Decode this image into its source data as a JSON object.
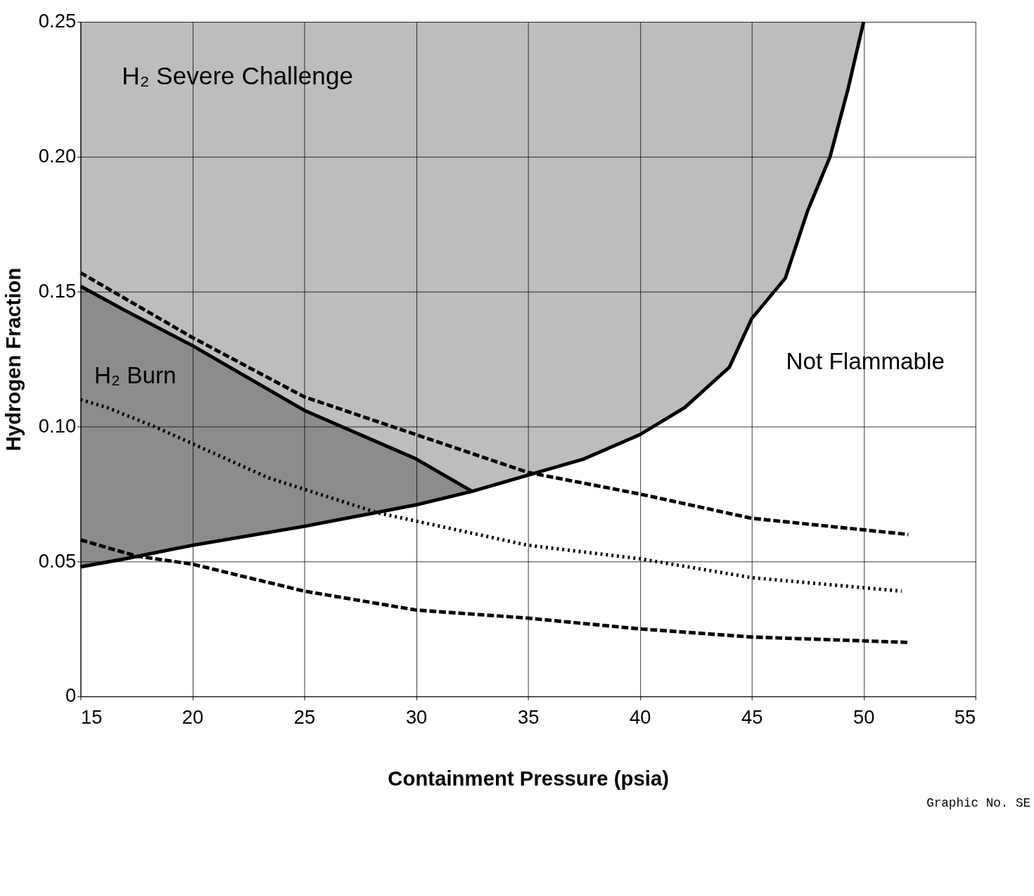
{
  "chart_data": {
    "type": "line",
    "xlabel": "Containment Pressure (psia)",
    "ylabel": "Hydrogen Fraction",
    "xlim": [
      15,
      55
    ],
    "ylim": [
      0,
      0.25
    ],
    "xticks": [
      15,
      20,
      25,
      30,
      35,
      40,
      45,
      50,
      55
    ],
    "yticks": [
      0,
      0.05,
      {
        "value": 0.1,
        "label": "0.10"
      },
      0.15,
      {
        "value": 0.2,
        "label": "0.20"
      },
      0.25
    ],
    "grid": true,
    "series": [
      {
        "color": "#000000",
        "line_style": "solid",
        "x": [
          15,
          17,
          20,
          25,
          30,
          32.5
        ],
        "values": [
          0.048,
          0.051,
          0.056,
          0.063,
          0.071,
          0.076
        ],
        "lower": [
          0.048,
          0.051,
          0.056,
          0.063,
          0.071,
          0.076
        ],
        "upper": [
          0.152,
          0.143,
          0.13,
          0.106,
          0.088,
          0.076
        ]
      },
      {
        "color": "#000000",
        "line_style": "solid",
        "x": [
          15,
          17,
          20,
          25,
          30,
          32.5,
          35,
          37.5,
          40,
          42,
          44,
          45,
          46.5,
          47.5,
          48.5,
          49.3,
          50
        ],
        "values": [
          0.152,
          0.143,
          0.13,
          0.106,
          0.088,
          0.076,
          0.082,
          0.088,
          0.097,
          0.107,
          0.122,
          0.14,
          0.155,
          0.18,
          0.2,
          0.225,
          0.25
        ],
        "lower": [
          0.152,
          0.143,
          0.13,
          0.106,
          0.088,
          0.076,
          0.082,
          0.088,
          0.097,
          0.107,
          0.122,
          0.14,
          0.155,
          0.18,
          0.2,
          0.225,
          0.25
        ],
        "upper": [
          0.25,
          0.25,
          0.25,
          0.25,
          0.25,
          0.25,
          0.25,
          0.25,
          0.25,
          0.25,
          0.25,
          0.25,
          0.25,
          0.25,
          0.25,
          0.25,
          0.25
        ]
      },
      {
        "color": "#000000",
        "line_style": "dashed",
        "x": [
          15,
          20,
          25,
          30,
          35,
          40,
          45,
          52
        ],
        "values": [
          0.157,
          0.133,
          0.111,
          0.097,
          0.083,
          0.075,
          0.066,
          0.06
        ]
      },
      {
        "color": "#000000",
        "line_style": "dotted",
        "x": [
          15,
          16.2,
          18.3,
          23.4,
          28.3,
          35,
          40,
          45,
          51.7
        ],
        "values": [
          0.11,
          0.107,
          0.1,
          0.081,
          0.068,
          0.056,
          0.051,
          0.044,
          0.039
        ]
      },
      {
        "color": "#000000",
        "line_style": "dashed",
        "x": [
          15,
          17.5,
          20,
          25,
          30,
          35,
          40,
          45,
          52
        ],
        "values": [
          0.058,
          0.052,
          0.049,
          0.039,
          0.032,
          0.029,
          0.025,
          0.022,
          0.02
        ]
      }
    ],
    "annotations": [
      "H₂ Severe Challenge",
      "H₂ Burn",
      "Not Flammable",
      "Graphic No. SE"
    ]
  }
}
